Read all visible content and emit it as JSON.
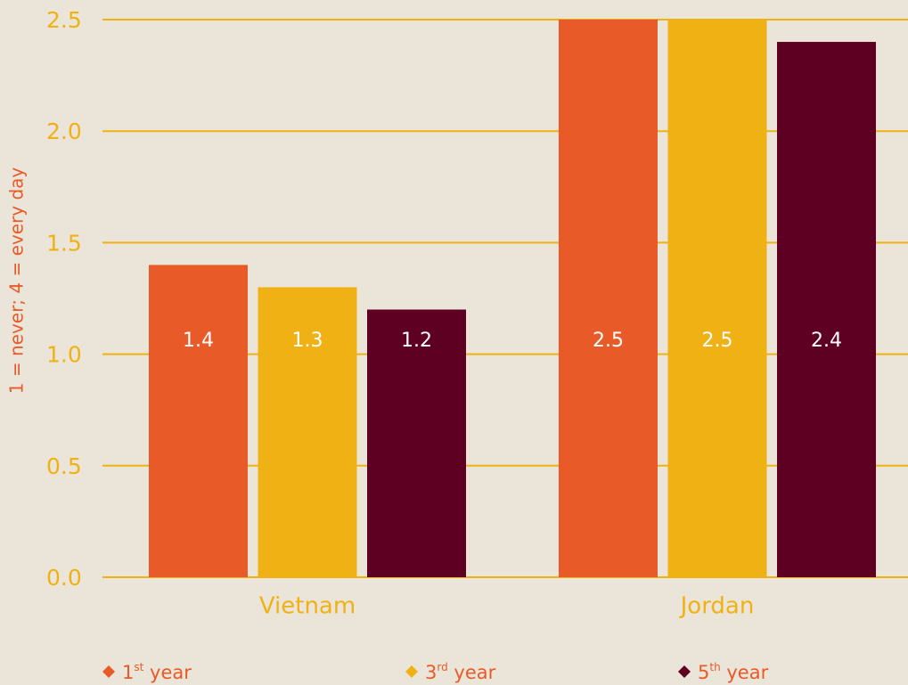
{
  "chart_data": {
    "type": "bar",
    "y_label": "1 = never; 4 = every day",
    "categories": [
      "Vietnam",
      "Jordan"
    ],
    "series": [
      {
        "name": "1st year",
        "color": "#e85a27",
        "values": [
          1.4,
          2.5
        ]
      },
      {
        "name": "3rd year",
        "color": "#f0b115",
        "values": [
          1.3,
          2.5
        ]
      },
      {
        "name": "5th year",
        "color": "#5e0022",
        "values": [
          1.2,
          2.4
        ]
      }
    ],
    "ylim": [
      0,
      2.5
    ],
    "yticks": [
      {
        "value": 0,
        "label": "0.0"
      },
      0.5,
      {
        "value": 1,
        "label": "1.0"
      },
      1.5,
      {
        "value": 2,
        "label": "2.0"
      },
      2.5
    ],
    "grid": true
  }
}
